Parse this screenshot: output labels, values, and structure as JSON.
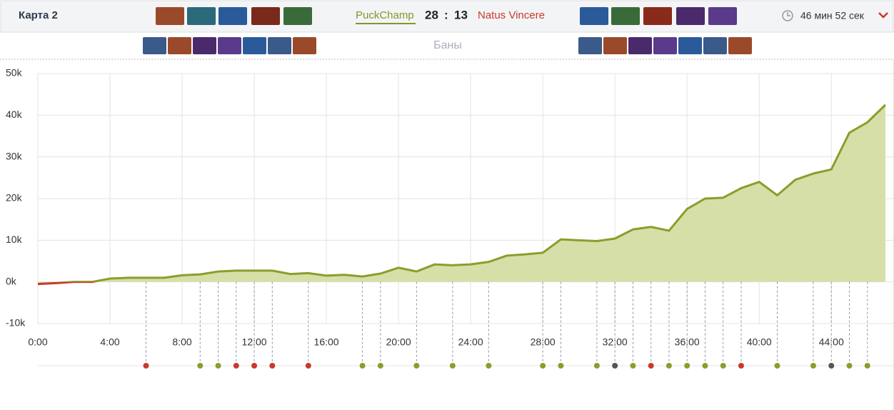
{
  "header": {
    "map": "Карта 2",
    "team1": "PuckChamp",
    "score1": "28",
    "separator": ":",
    "score2": "13",
    "team2": "Natus Vincere",
    "duration": "46 мин 52 сек",
    "bans": "Баны"
  },
  "chart_data": {
    "type": "area",
    "x": [
      0,
      1,
      2,
      3,
      4,
      5,
      6,
      7,
      8,
      9,
      10,
      11,
      12,
      13,
      14,
      15,
      16,
      17,
      18,
      19,
      20,
      21,
      22,
      23,
      24,
      25,
      26,
      27,
      28,
      29,
      30,
      31,
      32,
      33,
      34,
      35,
      36,
      37,
      38,
      39,
      40,
      41,
      42,
      43,
      44,
      45,
      46,
      47
    ],
    "values": [
      -500,
      -300,
      0,
      0,
      800,
      1000,
      1000,
      1000,
      1600,
      1800,
      2500,
      2700,
      2700,
      2700,
      1900,
      2100,
      1500,
      1700,
      1300,
      2000,
      3400,
      2500,
      4200,
      4000,
      4200,
      4800,
      6300,
      6600,
      7000,
      10200,
      10000,
      9800,
      10400,
      12600,
      13200,
      12300,
      17500,
      20000,
      20200,
      22500,
      24000,
      20800,
      24500,
      26000,
      27000,
      35800,
      38300,
      42500
    ],
    "color": "#8a9e2a",
    "negative_color": "#c83a2c",
    "fill_color": "#d6dfa8",
    "xlim": [
      0,
      47
    ],
    "ylim": [
      -10000,
      50000
    ],
    "xticks": [
      {
        "value": 0,
        "label": "0:00"
      },
      {
        "value": 4,
        "label": "4:00"
      },
      {
        "value": 8,
        "label": "8:00"
      },
      {
        "value": 12,
        "label": "12:00"
      },
      {
        "value": 16,
        "label": "16:00"
      },
      {
        "value": 20,
        "label": "20:00"
      },
      {
        "value": 24,
        "label": "24:00"
      },
      {
        "value": 28,
        "label": "28:00"
      },
      {
        "value": 32,
        "label": "32:00"
      },
      {
        "value": 36,
        "label": "36:00"
      },
      {
        "value": 40,
        "label": "40:00"
      },
      {
        "value": 44,
        "label": "44:00"
      }
    ],
    "yticks": [
      {
        "value": -10000,
        "label": "-10k"
      },
      {
        "value": 0,
        "label": "0k"
      },
      {
        "value": 10000,
        "label": "10k"
      },
      {
        "value": 20000,
        "label": "20k"
      },
      {
        "value": 30000,
        "label": "30k"
      },
      {
        "value": 40000,
        "label": "40k"
      },
      {
        "value": 50000,
        "label": "50k"
      }
    ],
    "grid": true,
    "events": [
      {
        "x": 6,
        "color": "#c83a2c"
      },
      {
        "x": 9,
        "color": "#8a9e2a"
      },
      {
        "x": 10,
        "color": "#8a9e2a"
      },
      {
        "x": 11,
        "color": "#c83a2c"
      },
      {
        "x": 12,
        "color": "#c83a2c"
      },
      {
        "x": 13,
        "color": "#c83a2c"
      },
      {
        "x": 15,
        "color": "#c83a2c"
      },
      {
        "x": 18,
        "color": "#8a9e2a"
      },
      {
        "x": 19,
        "color": "#8a9e2a"
      },
      {
        "x": 21,
        "color": "#8a9e2a"
      },
      {
        "x": 23,
        "color": "#8a9e2a"
      },
      {
        "x": 25,
        "color": "#8a9e2a"
      },
      {
        "x": 28,
        "color": "#8a9e2a"
      },
      {
        "x": 29,
        "color": "#8a9e2a"
      },
      {
        "x": 31,
        "color": "#8a9e2a"
      },
      {
        "x": 32,
        "color": "#555"
      },
      {
        "x": 33,
        "color": "#8a9e2a"
      },
      {
        "x": 34,
        "color": "#c83a2c"
      },
      {
        "x": 35,
        "color": "#8a9e2a"
      },
      {
        "x": 36,
        "color": "#8a9e2a"
      },
      {
        "x": 37,
        "color": "#8a9e2a"
      },
      {
        "x": 38,
        "color": "#8a9e2a"
      },
      {
        "x": 39,
        "color": "#c83a2c"
      },
      {
        "x": 41,
        "color": "#8a9e2a"
      },
      {
        "x": 43,
        "color": "#8a9e2a"
      },
      {
        "x": 44,
        "color": "#555"
      },
      {
        "x": 45,
        "color": "#8a9e2a"
      },
      {
        "x": 46,
        "color": "#8a9e2a"
      }
    ]
  }
}
